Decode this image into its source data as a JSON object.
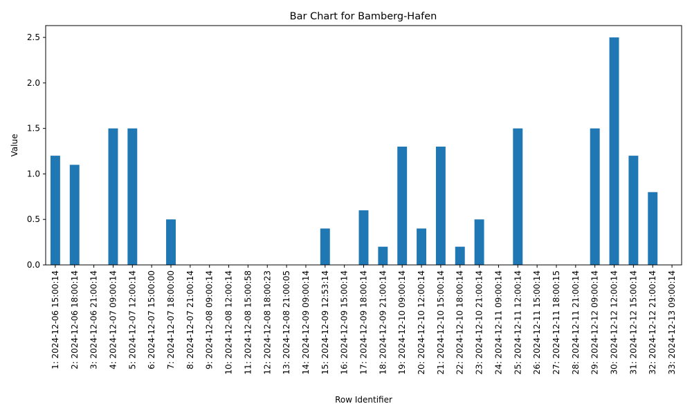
{
  "chart_data": {
    "type": "bar",
    "title": "Bar Chart for Bamberg-Hafen",
    "xlabel": "Row Identifier",
    "ylabel": "Value",
    "ylim": [
      0,
      2.63
    ],
    "yticks": [
      "0.0",
      "0.5",
      "1.0",
      "1.5",
      "2.0",
      "2.5"
    ],
    "grid": false,
    "legend": "none",
    "bar_color": "#1f77b4",
    "categories": [
      "1: 2024-12-06 15:00:14",
      "2: 2024-12-06 18:00:14",
      "3: 2024-12-06 21:00:14",
      "4: 2024-12-07 09:00:14",
      "5: 2024-12-07 12:00:14",
      "6: 2024-12-07 15:00:00",
      "7: 2024-12-07 18:00:00",
      "8: 2024-12-07 21:00:14",
      "9: 2024-12-08 09:00:14",
      "10: 2024-12-08 12:00:14",
      "11: 2024-12-08 15:00:58",
      "12: 2024-12-08 18:00:23",
      "13: 2024-12-08 21:00:05",
      "14: 2024-12-09 09:00:14",
      "15: 2024-12-09 12:53:14",
      "16: 2024-12-09 15:00:14",
      "17: 2024-12-09 18:00:14",
      "18: 2024-12-09 21:00:14",
      "19: 2024-12-10 09:00:14",
      "20: 2024-12-10 12:00:14",
      "21: 2024-12-10 15:00:14",
      "22: 2024-12-10 18:00:14",
      "23: 2024-12-10 21:00:14",
      "24: 2024-12-11 09:00:14",
      "25: 2024-12-11 12:00:14",
      "26: 2024-12-11 15:00:14",
      "27: 2024-12-11 18:00:15",
      "28: 2024-12-11 21:00:14",
      "29: 2024-12-12 09:00:14",
      "30: 2024-12-12 12:00:14",
      "31: 2024-12-12 15:00:14",
      "32: 2024-12-12 21:00:14",
      "33: 2024-12-13 09:00:14"
    ],
    "values": [
      1.2,
      1.1,
      0,
      1.5,
      1.5,
      0,
      0.5,
      0,
      0,
      0,
      0,
      0,
      0,
      0,
      0.4,
      0,
      0.6,
      0.2,
      1.3,
      0.4,
      1.3,
      0.2,
      0.5,
      0,
      1.5,
      0,
      0,
      0,
      1.5,
      2.5,
      1.2,
      0.8,
      0
    ]
  }
}
